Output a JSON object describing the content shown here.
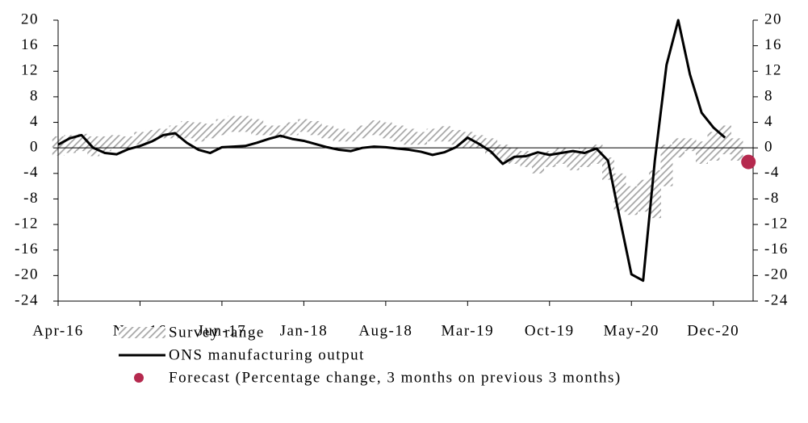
{
  "chart_data": {
    "type": "line",
    "categories": [
      "Apr-16",
      null,
      null,
      null,
      null,
      null,
      null,
      "Nov-16",
      null,
      null,
      null,
      null,
      null,
      null,
      "Jun-17",
      null,
      null,
      null,
      null,
      null,
      null,
      "Jan-18",
      null,
      null,
      null,
      null,
      null,
      null,
      "Aug-18",
      null,
      null,
      null,
      null,
      null,
      null,
      "Mar-19",
      null,
      null,
      null,
      null,
      null,
      null,
      "Oct-19",
      null,
      null,
      null,
      null,
      null,
      null,
      "May-20",
      null,
      null,
      null,
      null,
      null,
      null,
      "Dec-20",
      null,
      null,
      null
    ],
    "series": [
      {
        "name": "Survey range",
        "color": "#a6a6a6",
        "kind": "range",
        "low": [
          -1.2,
          -0.8,
          -0.5,
          -1.3,
          -0.5,
          0.0,
          0.0,
          0.5,
          1.0,
          1.5,
          1.5,
          1.5,
          1.0,
          1.5,
          2.0,
          2.5,
          2.5,
          2.0,
          2.0,
          1.5,
          2.0,
          2.5,
          2.0,
          1.5,
          1.0,
          1.0,
          1.5,
          2.0,
          1.5,
          1.0,
          0.5,
          0.5,
          1.0,
          1.0,
          0.5,
          0.0,
          0.0,
          -1.0,
          -2.0,
          -2.5,
          -3.0,
          -4.0,
          -3.0,
          -2.5,
          -3.5,
          -3.0,
          -2.5,
          -5.0,
          -10.0,
          -10.5,
          -10.0,
          -11.0,
          -6.0,
          -1.5,
          -0.5,
          -2.5,
          -2.0,
          -1.0,
          -2.0,
          null
        ],
        "high": [
          1.8,
          2.0,
          2.2,
          1.8,
          1.8,
          2.0,
          1.8,
          2.5,
          2.8,
          3.0,
          3.5,
          4.2,
          4.0,
          3.8,
          4.5,
          5.0,
          5.0,
          4.5,
          3.5,
          3.5,
          4.0,
          4.5,
          4.2,
          3.5,
          3.0,
          2.5,
          3.5,
          4.3,
          4.0,
          3.5,
          3.0,
          2.5,
          3.0,
          3.4,
          2.8,
          2.5,
          2.0,
          1.5,
          0.5,
          0.0,
          -0.5,
          -1.0,
          -0.5,
          0.0,
          -0.5,
          0.0,
          0.5,
          -1.5,
          -4.0,
          -6.0,
          -5.0,
          -3.5,
          0.5,
          1.5,
          1.5,
          1.0,
          2.5,
          3.5,
          1.5,
          null
        ]
      },
      {
        "name": "ONS manufacturing output",
        "color": "#000000",
        "kind": "line",
        "values": [
          0.5,
          1.5,
          2.0,
          0.0,
          -0.8,
          -1.0,
          -0.2,
          0.3,
          1.0,
          2.0,
          2.3,
          0.8,
          -0.3,
          -0.8,
          0.1,
          0.2,
          0.3,
          0.8,
          1.4,
          1.9,
          1.4,
          1.1,
          0.6,
          0.1,
          -0.3,
          -0.5,
          0.0,
          0.2,
          0.1,
          -0.1,
          -0.3,
          -0.6,
          -1.1,
          -0.7,
          0.1,
          1.6,
          0.6,
          -0.6,
          -2.5,
          -1.4,
          -1.3,
          -0.7,
          -1.1,
          -0.8,
          -0.5,
          -0.8,
          -0.1,
          -2.0,
          -11.0,
          -19.8,
          -20.8,
          -2.0,
          13.0,
          20.0,
          11.5,
          5.5,
          3.2,
          1.6,
          null,
          null
        ]
      },
      {
        "name": "Forecast (Percentage change, 3 months on previous 3 months)",
        "color": "#b5294e",
        "kind": "dot",
        "values": [
          null,
          null,
          null,
          null,
          null,
          null,
          null,
          null,
          null,
          null,
          null,
          null,
          null,
          null,
          null,
          null,
          null,
          null,
          null,
          null,
          null,
          null,
          null,
          null,
          null,
          null,
          null,
          null,
          null,
          null,
          null,
          null,
          null,
          null,
          null,
          null,
          null,
          null,
          null,
          null,
          null,
          null,
          null,
          null,
          null,
          null,
          null,
          null,
          null,
          null,
          null,
          null,
          null,
          null,
          null,
          null,
          null,
          null,
          null,
          -2.2
        ]
      }
    ],
    "ylim": [
      -24,
      20
    ],
    "yticks": [
      -24,
      -20,
      -16,
      -12,
      -8,
      -4,
      0,
      4,
      8,
      12,
      16,
      20
    ],
    "y2lim": [
      -24,
      20
    ],
    "y2ticks": [
      -24,
      -20,
      -16,
      -12,
      -8,
      -4,
      0,
      4,
      8,
      12,
      16,
      20
    ]
  }
}
